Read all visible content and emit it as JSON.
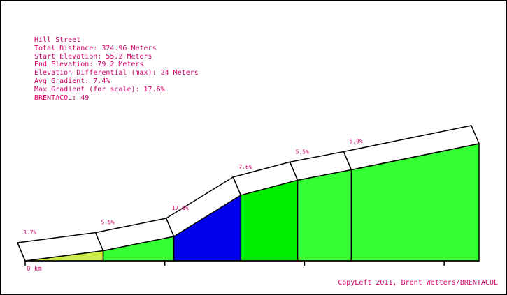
{
  "info": {
    "name": "Hill Street",
    "total_distance": "Total Distance: 324.96 Meters",
    "start_elevation": "Start Elevation: 55.2 Meters",
    "end_elevation": "End Elevation: 79.2 Meters",
    "elevation_differential": "Elevation Differential (max): 24 Meters",
    "avg_gradient": "Avg Gradient: 7.4%",
    "max_gradient": "Max Gradient (for scale): 17.6%",
    "brentacol": "BRENTACOL: 49"
  },
  "copyleft": "CopyLeft 2011, Brent Wetters/BRENTACOL",
  "colors": {
    "text": "#cc0066",
    "outline": "#000000",
    "top_face": "#ffffff"
  },
  "chart_data": {
    "type": "area",
    "title": "Hill Street",
    "x_units": "m",
    "x_tick_labels": [
      "0 km"
    ],
    "segments": [
      {
        "x_start": 0,
        "x_end": 55.86,
        "gradient_label": "3.7%",
        "gradient": 3.7,
        "color": "#ccee44"
      },
      {
        "x_start": 55.86,
        "x_end": 106.48,
        "gradient_label": "5.8%",
        "gradient": 5.8,
        "color": "#33ff33"
      },
      {
        "x_start": 106.48,
        "x_end": 154.39,
        "gradient_label": "17.6%",
        "gradient": 17.6,
        "color": "#0000ee"
      },
      {
        "x_start": 154.39,
        "x_end": 195.06,
        "gradient_label": "7.6%",
        "gradient": 7.6,
        "color": "#00ee00"
      },
      {
        "x_start": 195.06,
        "x_end": 233.55,
        "gradient_label": "5.5%",
        "gradient": 5.5,
        "color": "#33ff33"
      },
      {
        "x_start": 233.55,
        "x_end": 324.96,
        "gradient_label": "5.9%",
        "gradient": 5.9,
        "color": "#33ff33"
      }
    ],
    "elevation_points": [
      {
        "x": 0,
        "y": 55.2
      },
      {
        "x": 55.86,
        "y": 57.27
      },
      {
        "x": 106.48,
        "y": 60.2
      },
      {
        "x": 154.39,
        "y": 68.64
      },
      {
        "x": 195.06,
        "y": 71.73
      },
      {
        "x": 233.55,
        "y": 73.85
      },
      {
        "x": 324.96,
        "y": 79.2
      }
    ],
    "x_ticks": [
      0,
      100,
      200,
      300
    ],
    "xlim": [
      0,
      324.96
    ],
    "ylim": [
      55.2,
      79.2
    ]
  }
}
